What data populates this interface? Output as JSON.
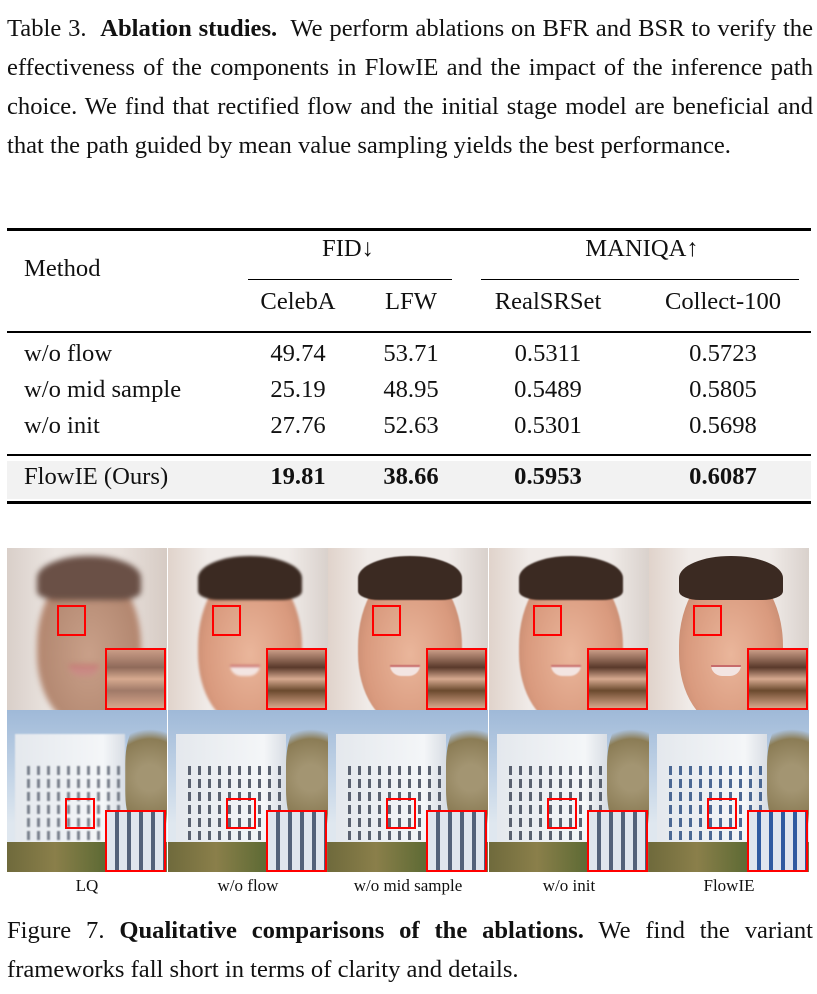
{
  "table_caption": {
    "label": "Table 3.",
    "title": "Ablation studies.",
    "text": "We perform ablations on BFR and BSR to verify the effectiveness of the components in FlowIE and the impact of the inference path choice. We find that rectified flow and the initial stage model are beneficial and that the path guided by mean value sampling yields the best performance."
  },
  "table": {
    "method_header": "Method",
    "groups": [
      {
        "label": "FID↓",
        "columns": [
          "CelebA",
          "LFW"
        ]
      },
      {
        "label": "MANIQA↑",
        "columns": [
          "RealSRSet",
          "Collect-100"
        ]
      }
    ],
    "rows": [
      {
        "method": "w/o flow",
        "values": [
          "49.74",
          "53.71",
          "0.5311",
          "0.5723"
        ]
      },
      {
        "method": "w/o mid sample",
        "values": [
          "25.19",
          "48.95",
          "0.5489",
          "0.5805"
        ]
      },
      {
        "method": "w/o init",
        "values": [
          "27.76",
          "52.63",
          "0.5301",
          "0.5698"
        ]
      }
    ],
    "ours": {
      "method": "FlowIE (Ours)",
      "values": [
        "19.81",
        "38.66",
        "0.5953",
        "0.6087"
      ]
    }
  },
  "figure": {
    "labels": [
      "LQ",
      "w/o flow",
      "w/o mid sample",
      "w/o init",
      "FlowIE"
    ],
    "highlight_color": "#ff0000"
  },
  "figure_caption": {
    "label": "Figure 7.",
    "title": "Qualitative comparisons of the ablations.",
    "text": "We find the variant frameworks fall short in terms of clarity and details."
  }
}
